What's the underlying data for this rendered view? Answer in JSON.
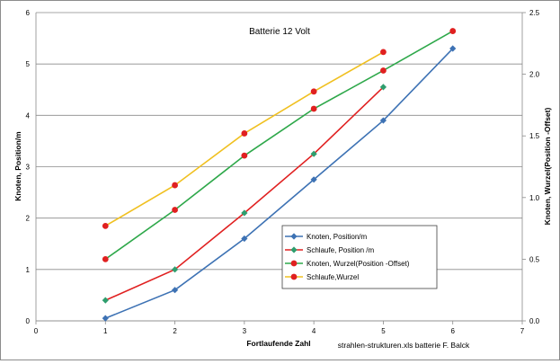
{
  "chart_data": {
    "type": "line",
    "title": "Batterie 12 Volt",
    "xlabel": "Fortlaufende Zahl",
    "ylabel_left": "Knoten, Position/m",
    "ylabel_right": "Knoten, Wurzel(Position -Offset)",
    "footer": "strahlen-strukturen.xls batterie  F. Balck",
    "xlim": [
      0,
      7
    ],
    "ylim_left": [
      0,
      6
    ],
    "ylim_right": [
      0,
      2.5
    ],
    "x_ticks": [
      "0",
      "1",
      "2",
      "3",
      "4",
      "5",
      "6",
      "7"
    ],
    "y_left_ticks": [
      "0",
      "1",
      "2",
      "3",
      "4",
      "5",
      "6"
    ],
    "y_right_ticks": [
      "0.0",
      "0.5",
      "1.0",
      "1.5",
      "2.0",
      "2.5"
    ],
    "grid": "horizontal",
    "legend_position": "lower-right",
    "series": [
      {
        "name": "Knoten, Position/m",
        "axis": "left",
        "color": "#3d72b4",
        "marker": "diamond",
        "x": [
          1,
          2,
          3,
          4,
          5,
          6
        ],
        "y": [
          0.05,
          0.6,
          1.6,
          2.75,
          3.9,
          5.3
        ]
      },
      {
        "name": "Schlaufe, Position /m",
        "axis": "left",
        "color": "#e02020",
        "marker": "diamond",
        "marker_color": "#2e9e6e",
        "x": [
          1,
          2,
          3,
          4,
          5
        ],
        "y": [
          0.4,
          1.0,
          2.1,
          3.25,
          4.55
        ]
      },
      {
        "name": "Knoten, Wurzel(Position -Offset)",
        "axis": "right",
        "color": "#2ea84a",
        "marker": "circle",
        "marker_color": "#e02020",
        "x": [
          1,
          2,
          3,
          4,
          5,
          6
        ],
        "y": [
          0.5,
          0.9,
          1.34,
          1.72,
          2.03,
          2.35
        ]
      },
      {
        "name": "Schlaufe,Wurzel",
        "axis": "right",
        "color": "#f0c020",
        "marker": "circle",
        "marker_color": "#e02020",
        "x": [
          1,
          2,
          3,
          4,
          5
        ],
        "y": [
          0.77,
          1.1,
          1.52,
          1.86,
          2.18
        ]
      }
    ]
  }
}
